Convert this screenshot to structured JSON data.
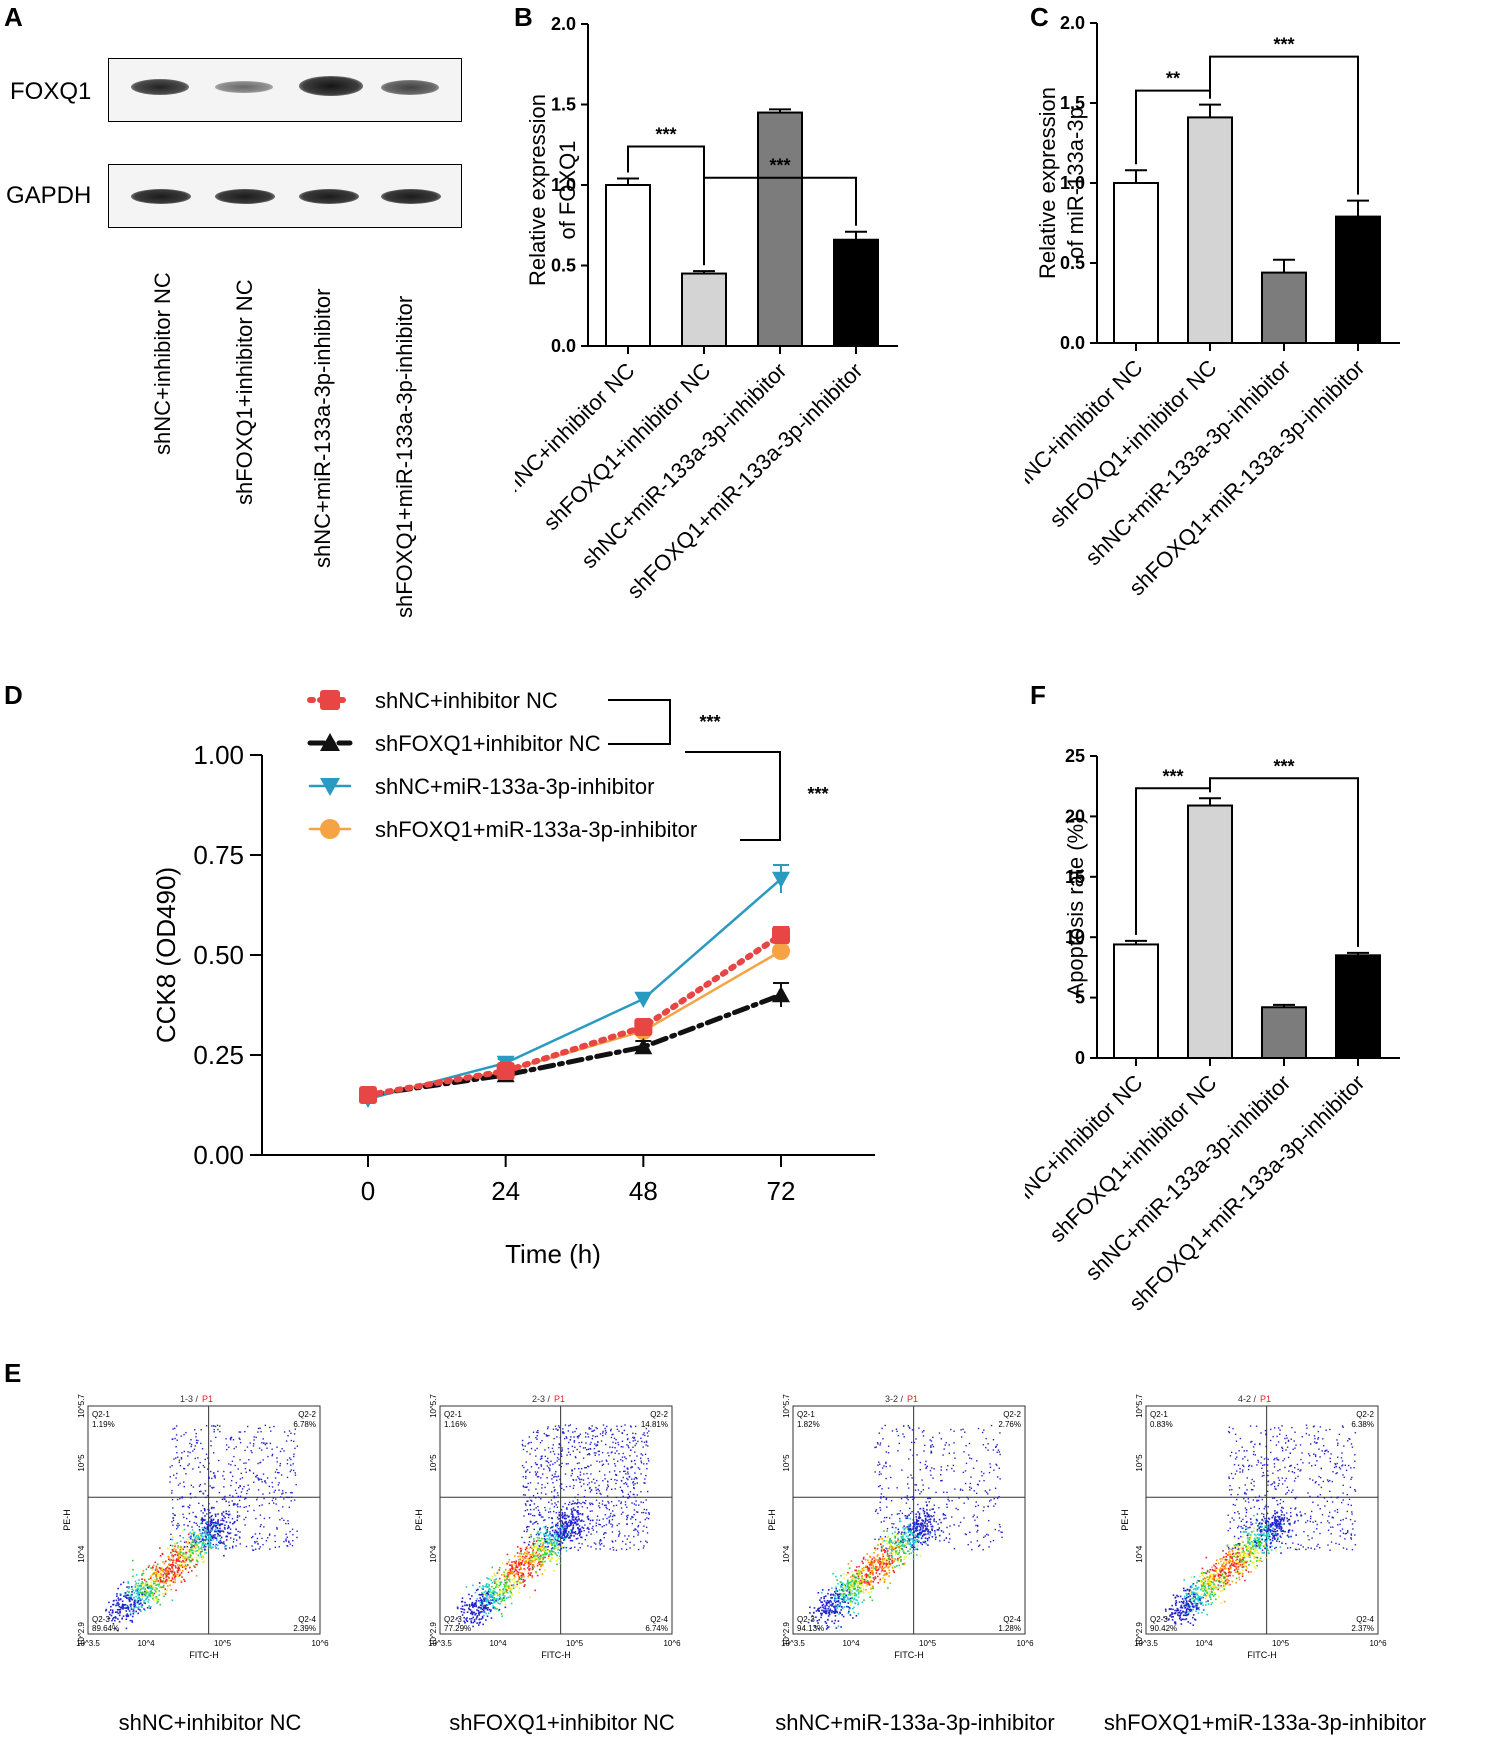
{
  "panel_labels": {
    "A": "A",
    "B": "B",
    "C": "C",
    "D": "D",
    "E": "E",
    "F": "F"
  },
  "colors": {
    "red": "#e84545",
    "black": "#111111",
    "teal": "#2a9bc0",
    "orange": "#f5a343",
    "white_bar": "#ffffff",
    "light_gray": "#d4d4d4",
    "dark_gray": "#7c7c7c",
    "black_bar": "#000000"
  },
  "groups": [
    "shNC+inhibitor NC",
    "shFOXQ1+inhibitor NC",
    "shNC+miR-133a-3p-inhibitor",
    "shFOXQ1+miR-133a-3p-inhibitor"
  ],
  "blot": {
    "rows": [
      "FOXQ1",
      "GAPDH"
    ],
    "foxq1_intensity": [
      0.9,
      0.45,
      1.0,
      0.7
    ],
    "gapdh_intensity": [
      0.95,
      0.95,
      0.95,
      0.95
    ]
  },
  "chart_data": [
    {
      "id": "B",
      "type": "bar",
      "categories": [
        "shNC+inhibitor NC",
        "shFOXQ1+inhibitor NC",
        "shNC+miR-133a-3p-inhibitor",
        "shFOXQ1+miR-133a-3p-inhibitor"
      ],
      "values": [
        1.0,
        0.45,
        1.45,
        0.66
      ],
      "errors": [
        0.04,
        0.015,
        0.02,
        0.05
      ],
      "bar_colors": [
        "#ffffff",
        "#d4d4d4",
        "#7c7c7c",
        "#000000"
      ],
      "ylabel_line1": "Relative expression",
      "ylabel_line2": "of FOXQ1",
      "ylim": [
        0,
        2.0
      ],
      "yticks": [
        0.0,
        0.5,
        1.0,
        1.5,
        2.0
      ],
      "ytick_labels": [
        "0.0",
        "0.5",
        "1.0",
        "1.5",
        "2.0"
      ],
      "significance": [
        {
          "from": 0,
          "to": 1,
          "label": "***"
        },
        {
          "from": 1,
          "to": 3,
          "label": "***"
        }
      ]
    },
    {
      "id": "C",
      "type": "bar",
      "categories": [
        "shNC+inhibitor NC",
        "shFOXQ1+inhibitor NC",
        "shNC+miR-133a-3p-inhibitor",
        "shFOXQ1+miR-133a-3p-inhibitor"
      ],
      "values": [
        1.0,
        1.41,
        0.44,
        0.79
      ],
      "errors": [
        0.08,
        0.08,
        0.08,
        0.1
      ],
      "bar_colors": [
        "#ffffff",
        "#d4d4d4",
        "#7c7c7c",
        "#000000"
      ],
      "ylabel_line1": "Relative expression",
      "ylabel_line2": "of miR-133a-3p",
      "ylim": [
        0,
        2.0
      ],
      "yticks": [
        0.0,
        0.5,
        1.0,
        1.5,
        2.0
      ],
      "ytick_labels": [
        "0.0",
        "0.5",
        "1.0",
        "1.5",
        "2.0"
      ],
      "significance": [
        {
          "from": 0,
          "to": 1,
          "label": "**"
        },
        {
          "from": 1,
          "to": 3,
          "label": "***"
        }
      ]
    },
    {
      "id": "D",
      "type": "line",
      "x": [
        0,
        24,
        48,
        72
      ],
      "xtick_labels": [
        "0",
        "24",
        "48",
        "72"
      ],
      "xlabel": "Time (h)",
      "ylabel": "CCK8 (OD490)",
      "ylim": [
        0,
        1.0
      ],
      "yticks": [
        0.0,
        0.25,
        0.5,
        0.75,
        1.0
      ],
      "ytick_labels": [
        "0.00",
        "0.25",
        "0.50",
        "0.75",
        "1.00"
      ],
      "series": [
        {
          "name": "shNC+inhibitor NC",
          "values": [
            0.15,
            0.21,
            0.32,
            0.55
          ],
          "errors": [
            0.01,
            0.01,
            0.015,
            0.02
          ],
          "color": "#e84545",
          "marker": "square",
          "dash": "dotted"
        },
        {
          "name": "shFOXQ1+inhibitor NC",
          "values": [
            0.15,
            0.2,
            0.27,
            0.4
          ],
          "errors": [
            0.01,
            0.015,
            0.015,
            0.03
          ],
          "color": "#111111",
          "marker": "triangle-up",
          "dash": "dashdot"
        },
        {
          "name": "shNC+miR-133a-3p-inhibitor",
          "values": [
            0.14,
            0.23,
            0.39,
            0.69
          ],
          "errors": [
            0.01,
            0.01,
            0.015,
            0.035
          ],
          "color": "#2a9bc0",
          "marker": "triangle-down",
          "dash": "solid"
        },
        {
          "name": "shFOXQ1+miR-133a-3p-inhibitor",
          "values": [
            0.15,
            0.21,
            0.31,
            0.51
          ],
          "errors": [
            0.01,
            0.01,
            0.015,
            0.02
          ],
          "color": "#f5a343",
          "marker": "circle",
          "dash": "solid"
        }
      ],
      "significance": [
        {
          "between": "legend 1-2",
          "label": "***"
        },
        {
          "between": "legend 2-4",
          "label": "***"
        }
      ]
    },
    {
      "id": "F",
      "type": "bar",
      "categories": [
        "shNC+inhibitor NC",
        "shFOXQ1+inhibitor NC",
        "shNC+miR-133a-3p-inhibitor",
        "shFOXQ1+miR-133a-3p-inhibitor"
      ],
      "values": [
        9.4,
        20.9,
        4.2,
        8.5
      ],
      "errors": [
        0.3,
        0.6,
        0.2,
        0.2
      ],
      "bar_colors": [
        "#ffffff",
        "#d4d4d4",
        "#7c7c7c",
        "#000000"
      ],
      "ylabel_line1": "Apoptosis rate (%)",
      "ylabel_line2": "",
      "ylim": [
        0,
        25
      ],
      "yticks": [
        0,
        5,
        10,
        15,
        20,
        25
      ],
      "ytick_labels": [
        "0",
        "5",
        "10",
        "15",
        "20",
        "25"
      ],
      "significance": [
        {
          "from": 0,
          "to": 1,
          "label": "***"
        },
        {
          "from": 1,
          "to": 3,
          "label": "***"
        }
      ]
    }
  ],
  "flow": {
    "x_axis": "FITC-H",
    "y_axis": "PE-H",
    "x_ticks": [
      "10^3.5",
      "10^4",
      "10^5",
      "10^6"
    ],
    "y_ticks": [
      "10^2.9",
      "10^4",
      "10^5",
      "10^5.7"
    ],
    "plots": [
      {
        "title": "1-3",
        "gate": "P1",
        "q1": "1.19%",
        "q2": "6.78%",
        "q3": "89.64%",
        "q4": "2.39%",
        "label": "shNC+inhibitor NC"
      },
      {
        "title": "2-3",
        "gate": "P1",
        "q1": "1.16%",
        "q2": "14.81%",
        "q3": "77.29%",
        "q4": "6.74%",
        "label": "shFOXQ1+inhibitor NC"
      },
      {
        "title": "3-2",
        "gate": "P1",
        "q1": "1.82%",
        "q2": "2.76%",
        "q3": "94.13%",
        "q4": "1.28%",
        "label": "shNC+miR-133a-3p-inhibitor"
      },
      {
        "title": "4-2",
        "gate": "P1",
        "q1": "0.83%",
        "q2": "6.38%",
        "q3": "90.42%",
        "q4": "2.37%",
        "label": "shFOXQ1+miR-133a-3p-inhibitor"
      }
    ],
    "quadrant_names": {
      "q1": "Q2-1",
      "q2": "Q2-2",
      "q3": "Q2-3",
      "q4": "Q2-4"
    }
  }
}
